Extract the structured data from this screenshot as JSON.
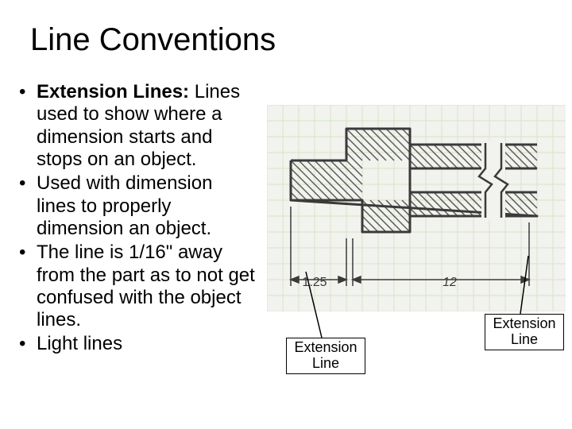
{
  "title": "Line Conventions",
  "bullets": {
    "b1_label": "Extension Lines:",
    "b1_text": "  Lines used to show where a dimension starts and stops on an object.",
    "b2": "Used with dimension lines to properly dimension an object.",
    "b3": "The line is 1/16\" away from the part as to not get confused with the object lines.",
    "b4": "Light lines"
  },
  "callouts": {
    "c1": "Extension Line",
    "c2": "Extension Line"
  },
  "diagram": {
    "grid_color": "#d4e6c8",
    "grid_spacing": 20,
    "object_stroke": "#3a3a3a",
    "object_stroke_width": 3,
    "hatch_stroke": "#5a5a5a",
    "hatch_width": 1.5,
    "dim1_label": "1.25",
    "dim2_label": "12",
    "bg": "#f2f2ee"
  }
}
